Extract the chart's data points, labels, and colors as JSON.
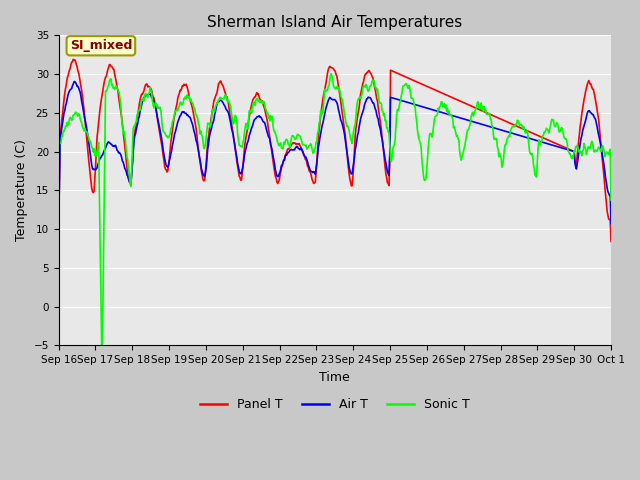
{
  "title": "Sherman Island Air Temperatures",
  "xlabel": "Time",
  "ylabel": "Temperature (C)",
  "ylim": [
    -5,
    35
  ],
  "xlim": [
    0,
    15
  ],
  "series_colors": {
    "panel": "#ff0000",
    "air": "#0000ff",
    "sonic": "#00ff00"
  },
  "tick_labels": [
    "Sep 16",
    "Sep 17",
    "Sep 18",
    "Sep 19",
    "Sep 20",
    "Sep 21",
    "Sep 22",
    "Sep 23",
    "Sep 24",
    "Sep 25",
    "Sep 26",
    "Sep 27",
    "Sep 28",
    "Sep 29",
    "Sep 30",
    "Oct 1"
  ],
  "figsize": [
    6.4,
    4.8
  ],
  "dpi": 100,
  "fig_facecolor": "#c8c8c8",
  "ax_facecolor": "#e8e8e8",
  "grid_color": "#ffffff",
  "title_fontsize": 11,
  "axis_fontsize": 9,
  "tick_fontsize": 7.5,
  "legend_fontsize": 9,
  "annotation_fontsize": 9,
  "linewidth": 1.2
}
